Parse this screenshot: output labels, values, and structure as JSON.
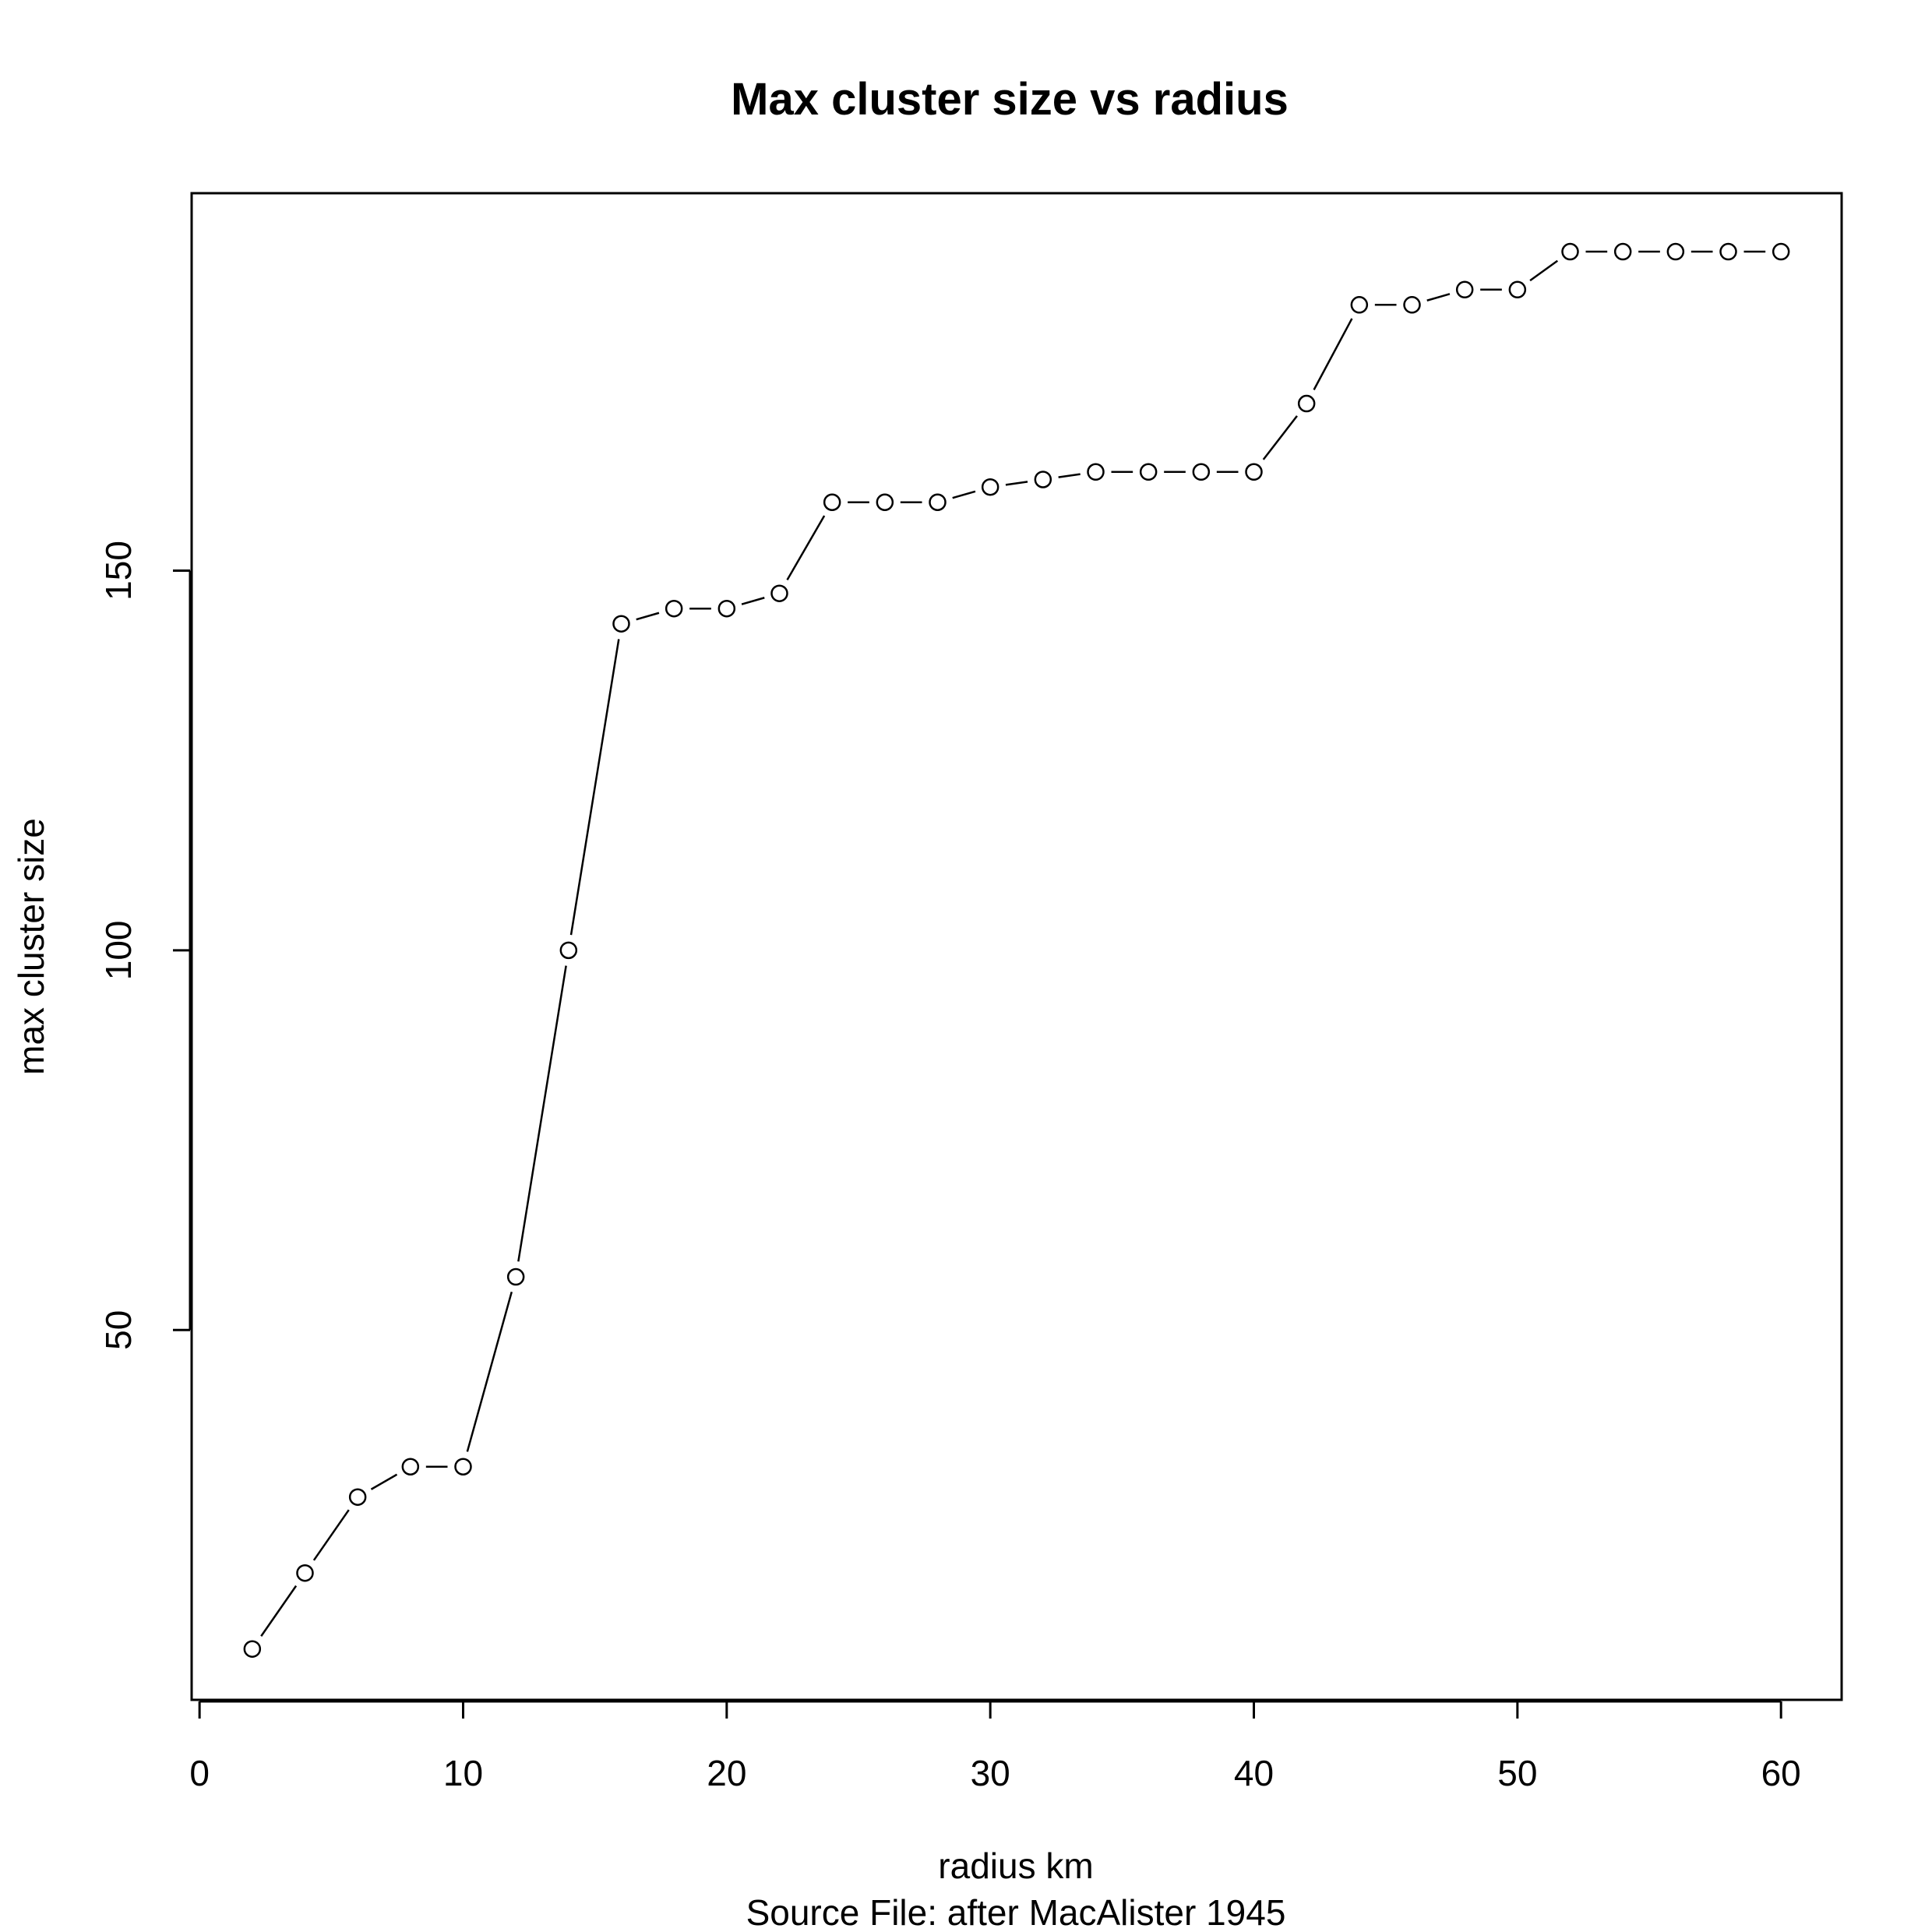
{
  "chart_data": {
    "type": "line",
    "title": "Max cluster size vs radius",
    "xlabel": "radius  km",
    "subtitle": "Source File:  after MacAlister 1945",
    "ylabel": "max cluster size",
    "xlim": [
      -0.3,
      62.3
    ],
    "ylim": [
      1.3,
      199.7
    ],
    "x_ticks": [
      0,
      10,
      20,
      30,
      40,
      50,
      60
    ],
    "y_ticks": [
      50,
      100,
      150
    ],
    "series": [
      {
        "x": [
          2,
          4,
          6,
          8,
          10,
          12,
          14,
          16,
          18,
          20,
          22,
          24,
          26,
          28,
          30,
          32,
          34,
          36,
          38,
          40,
          42,
          44,
          46,
          48,
          50,
          52,
          54,
          56,
          58,
          60
        ],
        "y": [
          8,
          18,
          28,
          32,
          32,
          57,
          100,
          143,
          145,
          145,
          147,
          159,
          159,
          159,
          161,
          162,
          163,
          163,
          163,
          163,
          172,
          185,
          185,
          187,
          187,
          192,
          192,
          192,
          192,
          192
        ]
      }
    ],
    "marker": "open-circle",
    "line_type": "b",
    "grid": false
  }
}
